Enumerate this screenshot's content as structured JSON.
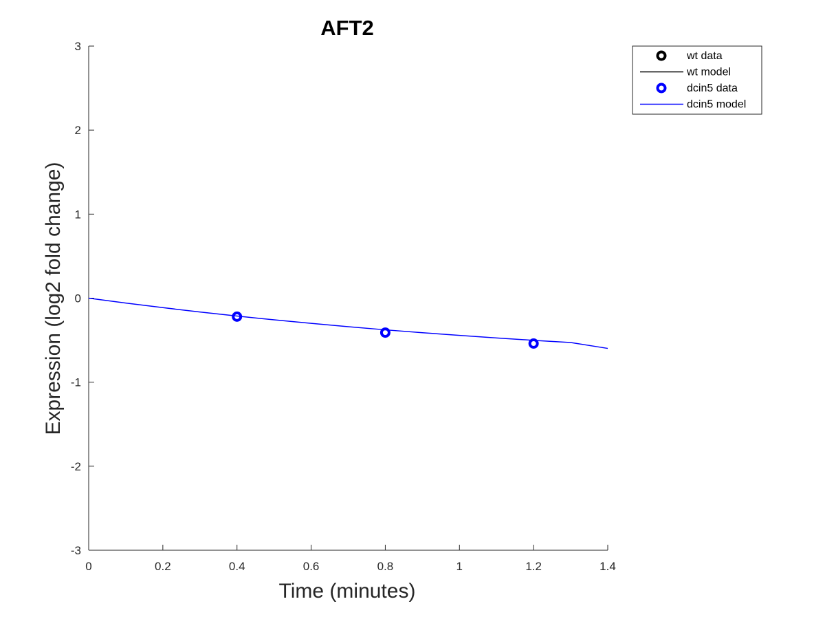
{
  "chart_data": {
    "type": "line",
    "title": "AFT2",
    "xlabel": "Time (minutes)",
    "ylabel": "Expression (log2 fold change)",
    "xlim": [
      0,
      1.4
    ],
    "ylim": [
      -3,
      3
    ],
    "xticks": [
      "0",
      "0.2",
      "0.4",
      "0.6",
      "0.8",
      "1",
      "1.2",
      "1.4"
    ],
    "yticks": [
      "3",
      "2",
      "1",
      "0",
      "-1",
      "-2",
      "-3"
    ],
    "grid": false,
    "legend_position": "top-right outside",
    "series": [
      {
        "name": "wt data",
        "kind": "markers",
        "color": "#000000",
        "x": [],
        "y": []
      },
      {
        "name": "wt model",
        "kind": "line",
        "color": "#000000",
        "x": [],
        "y": []
      },
      {
        "name": "dcin5 data",
        "kind": "markers",
        "color": "#0000ff",
        "x": [
          0.4,
          0.8,
          1.2
        ],
        "y": [
          -0.22,
          -0.41,
          -0.54
        ]
      },
      {
        "name": "dcin5 model",
        "kind": "line",
        "color": "#0000ff",
        "x": [
          0,
          0.1,
          0.2,
          0.3,
          0.4,
          0.5,
          0.6,
          0.7,
          0.8,
          0.9,
          1.0,
          1.1,
          1.2,
          1.3,
          1.4
        ],
        "y": [
          0,
          -0.058,
          -0.113,
          -0.165,
          -0.213,
          -0.258,
          -0.3,
          -0.34,
          -0.377,
          -0.411,
          -0.443,
          -0.474,
          -0.502,
          -0.528,
          -0.598
        ]
      }
    ]
  }
}
